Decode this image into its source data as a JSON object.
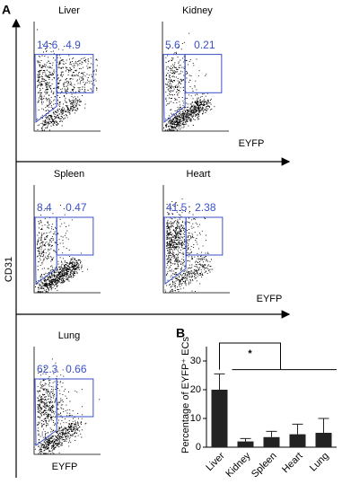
{
  "panel_a": {
    "label": "A",
    "y_axis_label": "CD31",
    "x_axis_labels": [
      "EYFP",
      "EYFP",
      "EYFP"
    ],
    "plots": [
      {
        "title": "Liver",
        "gates": [
          14.6,
          4.9
        ]
      },
      {
        "title": "Kidney",
        "gates": [
          5.6,
          0.21
        ]
      },
      {
        "title": "Spleen",
        "gates": [
          8.4,
          0.47
        ]
      },
      {
        "title": "Heart",
        "gates": [
          41.5,
          2.38
        ]
      },
      {
        "title": "Lung",
        "gates": [
          62.3,
          0.66
        ]
      }
    ]
  },
  "chart_data": {
    "type": "bar",
    "panel_label": "B",
    "y_label": "Percentage of EYFP⁺ ECs",
    "categories": [
      "Liver",
      "Kidney",
      "Spleen",
      "Heart",
      "Lung"
    ],
    "values": [
      20,
      2,
      3.5,
      4.5,
      5
    ],
    "errors": [
      5.5,
      1,
      2,
      3.5,
      5
    ],
    "color": "#222222",
    "ylim": [
      0,
      35
    ],
    "yticks": [
      0,
      10,
      20,
      30
    ],
    "annotation": "*"
  }
}
